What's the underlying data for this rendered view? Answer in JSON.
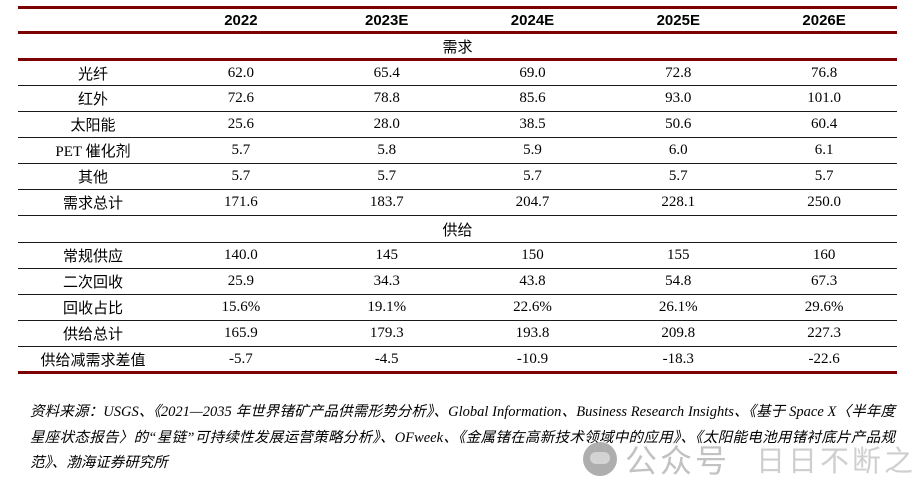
{
  "table": {
    "columns": [
      "",
      "2022",
      "2023E",
      "2024E",
      "2025E",
      "2026E"
    ],
    "sections": [
      {
        "header": "需求",
        "divider": "accent",
        "rows": [
          {
            "label": "光纤",
            "values": [
              "62.0",
              "65.4",
              "69.0",
              "72.8",
              "76.8"
            ]
          },
          {
            "label": "红外",
            "values": [
              "72.6",
              "78.8",
              "85.6",
              "93.0",
              "101.0"
            ]
          },
          {
            "label": "太阳能",
            "values": [
              "25.6",
              "28.0",
              "38.5",
              "50.6",
              "60.4"
            ]
          },
          {
            "label": "PET 催化剂",
            "values": [
              "5.7",
              "5.8",
              "5.9",
              "6.0",
              "6.1"
            ]
          },
          {
            "label": "其他",
            "values": [
              "5.7",
              "5.7",
              "5.7",
              "5.7",
              "5.7"
            ]
          },
          {
            "label": "需求总计",
            "values": [
              "171.6",
              "183.7",
              "204.7",
              "228.1",
              "250.0"
            ]
          }
        ]
      },
      {
        "header": "供给",
        "divider": "dark",
        "rows": [
          {
            "label": "常规供应",
            "values": [
              "140.0",
              "145",
              "150",
              "155",
              "160"
            ]
          },
          {
            "label": "二次回收",
            "values": [
              "25.9",
              "34.3",
              "43.8",
              "54.8",
              "67.3"
            ]
          },
          {
            "label": "回收占比",
            "values": [
              "15.6%",
              "19.1%",
              "22.6%",
              "26.1%",
              "29.6%"
            ]
          },
          {
            "label": "供给总计",
            "values": [
              "165.9",
              "179.3",
              "193.8",
              "209.8",
              "227.3"
            ]
          },
          {
            "label": "供给减需求差值",
            "values": [
              "-5.7",
              "-4.5",
              "-10.9",
              "-18.3",
              "-22.6"
            ]
          }
        ]
      }
    ]
  },
  "footer": {
    "label": "资料来源：",
    "text": "USGS、《2021—2035 年世界锗矿产品供需形势分析》、Global Information、Business Research Insights、《基于 Space X〈半年度星座状态报告〉的“星链”可持续性发展运营策略分析》、OFweek、《金属锗在高新技术领域中的应用》、《太阳能电池用锗衬底片产品规范》、渤海证券研究所"
  },
  "watermark": {
    "icon": "wechat-logo-icon",
    "text1": "公众号",
    "text2": "日日不断之功"
  },
  "colors": {
    "accent": "#7d0101",
    "row_line": "#1a1a1a",
    "watermark_grey": "#c2c2c2"
  }
}
